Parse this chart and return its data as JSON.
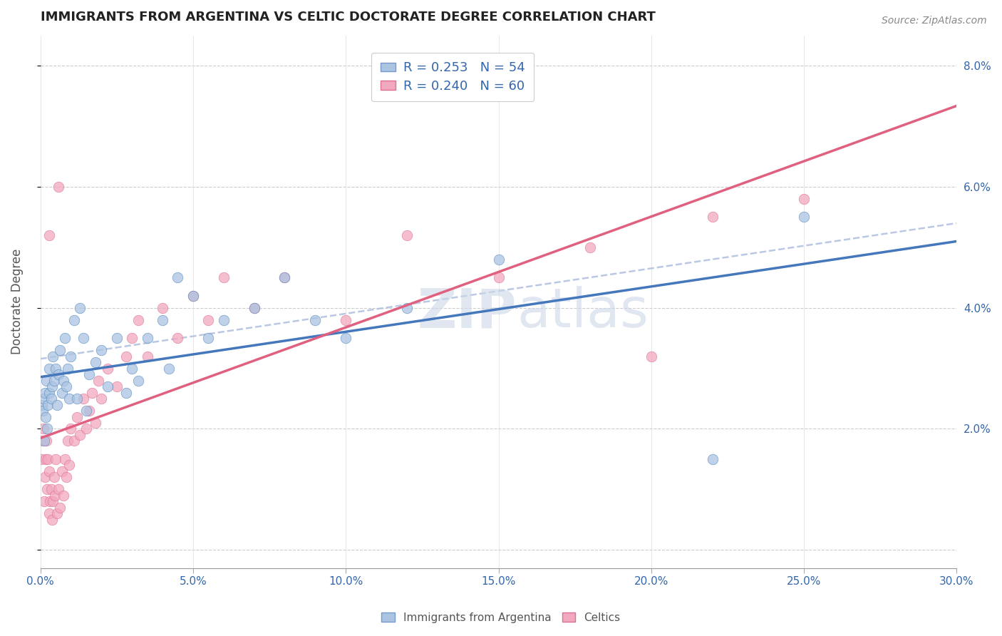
{
  "title": "IMMIGRANTS FROM ARGENTINA VS CELTIC DOCTORATE DEGREE CORRELATION CHART",
  "source": "Source: ZipAtlas.com",
  "ylabel": "Doctorate Degree",
  "xlim": [
    0.0,
    30.0
  ],
  "ylim": [
    -0.3,
    8.5
  ],
  "yticks": [
    0.0,
    2.0,
    4.0,
    6.0,
    8.0
  ],
  "ytick_labels": [
    "",
    "2.0%",
    "4.0%",
    "6.0%",
    "8.0%"
  ],
  "xticks": [
    0.0,
    5.0,
    10.0,
    15.0,
    20.0,
    25.0,
    30.0
  ],
  "xtick_labels": [
    "0.0%",
    "5.0%",
    "10.0%",
    "15.0%",
    "20.0%",
    "25.0%",
    "30.0%"
  ],
  "r_argentina": 0.253,
  "n_argentina": 54,
  "r_celtics": 0.24,
  "n_celtics": 60,
  "color_argentina": "#aac4e2",
  "color_celtics": "#f2a8be",
  "color_argentina_line": "#4477bb",
  "color_celtics_line": "#e06080",
  "color_trend_dashed": "#aabbdd",
  "legend_label_argentina": "Immigrants from Argentina",
  "legend_label_celtics": "Celtics",
  "argentina_x": [
    0.05,
    0.08,
    0.1,
    0.12,
    0.15,
    0.18,
    0.2,
    0.22,
    0.25,
    0.28,
    0.3,
    0.35,
    0.38,
    0.4,
    0.45,
    0.5,
    0.55,
    0.6,
    0.65,
    0.7,
    0.75,
    0.8,
    0.85,
    0.9,
    0.95,
    1.0,
    1.1,
    1.2,
    1.3,
    1.4,
    1.5,
    1.6,
    1.8,
    2.0,
    2.2,
    2.5,
    2.8,
    3.0,
    3.2,
    3.5,
    4.0,
    4.2,
    4.5,
    5.0,
    5.5,
    6.0,
    7.0,
    8.0,
    9.0,
    10.0,
    12.0,
    15.0,
    22.0,
    25.0
  ],
  "argentina_y": [
    2.4,
    2.3,
    2.5,
    1.8,
    2.6,
    2.2,
    2.8,
    2.0,
    2.4,
    2.6,
    3.0,
    2.5,
    2.7,
    3.2,
    2.8,
    3.0,
    2.4,
    2.9,
    3.3,
    2.6,
    2.8,
    3.5,
    2.7,
    3.0,
    2.5,
    3.2,
    3.8,
    2.5,
    4.0,
    3.5,
    2.3,
    2.9,
    3.1,
    3.3,
    2.7,
    3.5,
    2.6,
    3.0,
    2.8,
    3.5,
    3.8,
    3.0,
    4.5,
    4.2,
    3.5,
    3.8,
    4.0,
    4.5,
    3.8,
    3.5,
    4.0,
    4.8,
    1.5,
    5.5
  ],
  "celtics_x": [
    0.04,
    0.07,
    0.1,
    0.12,
    0.15,
    0.18,
    0.2,
    0.22,
    0.25,
    0.28,
    0.3,
    0.32,
    0.35,
    0.38,
    0.4,
    0.45,
    0.48,
    0.5,
    0.55,
    0.6,
    0.65,
    0.7,
    0.75,
    0.8,
    0.85,
    0.9,
    0.95,
    1.0,
    1.1,
    1.2,
    1.3,
    1.4,
    1.5,
    1.6,
    1.7,
    1.8,
    1.9,
    2.0,
    2.2,
    2.5,
    2.8,
    3.0,
    3.2,
    3.5,
    4.0,
    4.5,
    5.0,
    5.5,
    6.0,
    7.0,
    8.0,
    10.0,
    12.0,
    15.0,
    18.0,
    20.0,
    22.0,
    25.0,
    0.3,
    0.6
  ],
  "celtics_y": [
    1.5,
    1.8,
    2.0,
    0.8,
    1.2,
    1.5,
    1.8,
    1.0,
    1.5,
    0.6,
    1.3,
    0.8,
    1.0,
    0.5,
    0.8,
    1.2,
    0.9,
    1.5,
    0.6,
    1.0,
    0.7,
    1.3,
    0.9,
    1.5,
    1.2,
    1.8,
    1.4,
    2.0,
    1.8,
    2.2,
    1.9,
    2.5,
    2.0,
    2.3,
    2.6,
    2.1,
    2.8,
    2.5,
    3.0,
    2.7,
    3.2,
    3.5,
    3.8,
    3.2,
    4.0,
    3.5,
    4.2,
    3.8,
    4.5,
    4.0,
    4.5,
    3.8,
    5.2,
    4.5,
    5.0,
    3.2,
    5.5,
    5.8,
    5.2,
    6.0
  ]
}
